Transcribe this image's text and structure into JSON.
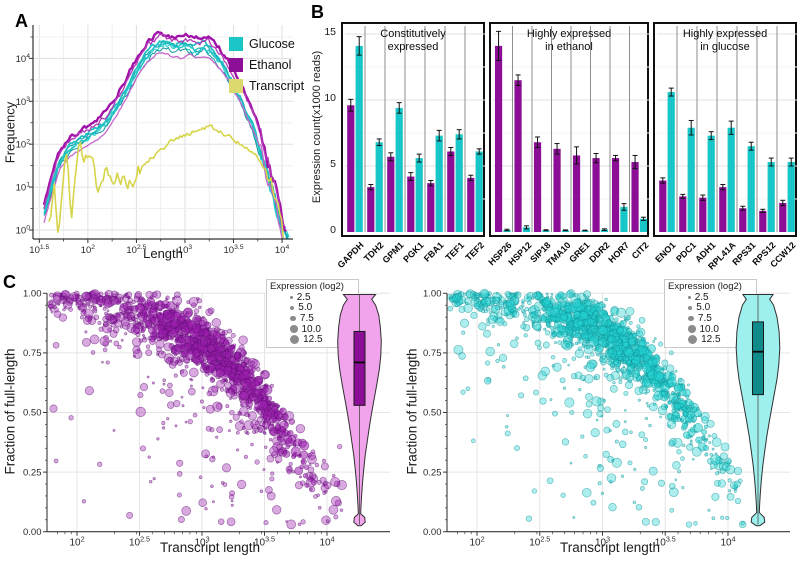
{
  "panels": {
    "a": {
      "label": "A",
      "xlabel": "Length",
      "ylabel": "Frequency",
      "legend": [
        {
          "label": "Glucose",
          "color": "#1cc5c8"
        },
        {
          "label": "Ethanol",
          "color": "#8e0f97"
        },
        {
          "label": "Transcript",
          "color": "#dcda6e"
        }
      ]
    },
    "b": {
      "label": "B",
      "ylabel": "Expression count(x1000 reads)"
    },
    "c": {
      "label": "C",
      "xlabel": "Transcript length",
      "ylabel": "Fraction of full-length",
      "legend_title": "Expression (log2)",
      "legend_sizes": [
        "2.5",
        "5.0",
        "7.5",
        "10.0",
        "12.5"
      ]
    }
  },
  "chart_data": [
    {
      "id": "A",
      "type": "line",
      "title": "Read length distributions",
      "xlabel": "Length",
      "ylabel": "Frequency",
      "xscale": "log",
      "yscale": "log",
      "xlim_log": [
        1.5,
        4
      ],
      "ylim_log": [
        0,
        4
      ],
      "x_tick_exponents": [
        "1.5",
        "2",
        "2.5",
        "3",
        "3.5",
        "4"
      ],
      "y_tick_exponents": [
        "0",
        "1",
        "2",
        "3",
        "4"
      ],
      "legend_position": "top-right",
      "grid": true,
      "series": [
        {
          "name": "Glucose",
          "anchors": [
            [
              1.55,
              0.5
            ],
            [
              1.7,
              1.6
            ],
            [
              1.8,
              1.95
            ],
            [
              1.9,
              2.1
            ],
            [
              2.0,
              2.25
            ],
            [
              2.1,
              2.4
            ],
            [
              2.2,
              2.6
            ],
            [
              2.3,
              2.95
            ],
            [
              2.4,
              3.3
            ],
            [
              2.5,
              3.75
            ],
            [
              2.6,
              4.1
            ],
            [
              2.7,
              4.35
            ],
            [
              2.8,
              4.42
            ],
            [
              2.9,
              4.3
            ],
            [
              3.0,
              4.38
            ],
            [
              3.1,
              4.25
            ],
            [
              3.2,
              4.35
            ],
            [
              3.3,
              4.15
            ],
            [
              3.4,
              3.85
            ],
            [
              3.5,
              3.4
            ],
            [
              3.6,
              2.95
            ],
            [
              3.7,
              2.45
            ],
            [
              3.8,
              1.7
            ],
            [
              3.9,
              0.9
            ],
            [
              4.0,
              0.2
            ],
            [
              4.08,
              -0.3
            ]
          ],
          "lines": [
            {
              "offset": 0,
              "width": 1.7,
              "amp": 0.05,
              "seed": 3,
              "color": "#1fbfc3"
            },
            {
              "offset": -0.05,
              "width": 1.2,
              "amp": 0.05,
              "seed": 4,
              "color": "#18aeb4"
            },
            {
              "offset": -0.1,
              "width": 1.1,
              "amp": 0.06,
              "seed": 5,
              "color": "#2bd1d1"
            },
            {
              "offset": -0.16,
              "width": 1.0,
              "amp": 0.05,
              "seed": 6,
              "color": "#0f97a0"
            },
            {
              "offset": -0.08,
              "width": 1.4,
              "amp": 0.04,
              "seed": 7,
              "color": "#25c3c6"
            }
          ]
        },
        {
          "name": "Ethanol",
          "anchors": [
            [
              1.55,
              0.6
            ],
            [
              1.7,
              1.8
            ],
            [
              1.8,
              2.1
            ],
            [
              1.9,
              2.25
            ],
            [
              2.0,
              2.4
            ],
            [
              2.1,
              2.55
            ],
            [
              2.2,
              2.75
            ],
            [
              2.3,
              3.1
            ],
            [
              2.4,
              3.5
            ],
            [
              2.5,
              3.95
            ],
            [
              2.6,
              4.3
            ],
            [
              2.7,
              4.52
            ],
            [
              2.75,
              4.56
            ],
            [
              2.85,
              4.48
            ],
            [
              2.95,
              4.42
            ],
            [
              3.05,
              4.5
            ],
            [
              3.15,
              4.42
            ],
            [
              3.25,
              4.45
            ],
            [
              3.35,
              4.2
            ],
            [
              3.45,
              3.9
            ],
            [
              3.55,
              3.5
            ],
            [
              3.65,
              3.0
            ],
            [
              3.75,
              2.5
            ],
            [
              3.85,
              1.7
            ],
            [
              3.95,
              0.8
            ],
            [
              4.05,
              -0.2
            ]
          ],
          "lines": [
            {
              "offset": 0.04,
              "width": 2.4,
              "amp": 0.05,
              "seed": 8,
              "color": "#a112a8"
            },
            {
              "offset": -0.06,
              "width": 1.3,
              "amp": 0.06,
              "seed": 9,
              "color": "#b23ab8"
            },
            {
              "offset": -0.42,
              "width": 1.3,
              "amp": 0.02,
              "seed": 10,
              "color": "#c667cb"
            }
          ]
        },
        {
          "name": "Transcript",
          "anchors": [
            [
              1.6,
              0.3
            ],
            [
              1.65,
              1.0
            ],
            [
              1.7,
              0.0
            ],
            [
              1.78,
              1.9
            ],
            [
              1.83,
              0.2
            ],
            [
              1.9,
              1.8
            ],
            [
              1.98,
              1.6
            ],
            [
              2.05,
              1.9
            ],
            [
              2.1,
              1.1
            ],
            [
              2.18,
              1.5
            ],
            [
              2.25,
              1.2
            ],
            [
              2.35,
              1.35
            ],
            [
              2.45,
              1.15
            ],
            [
              2.55,
              1.5
            ],
            [
              2.65,
              1.7
            ],
            [
              2.75,
              1.9
            ],
            [
              2.85,
              2.05
            ],
            [
              2.95,
              2.15
            ],
            [
              3.05,
              2.25
            ],
            [
              3.15,
              2.35
            ],
            [
              3.25,
              2.4
            ],
            [
              3.35,
              2.3
            ],
            [
              3.45,
              2.2
            ],
            [
              3.55,
              2.05
            ],
            [
              3.65,
              1.9
            ],
            [
              3.75,
              1.7
            ],
            [
              3.82,
              1.45
            ],
            [
              3.88,
              1.15
            ],
            [
              3.93,
              0.8
            ],
            [
              3.98,
              0.3
            ],
            [
              4.02,
              -0.2
            ]
          ],
          "lines": [
            {
              "offset": 0,
              "width": 1.6,
              "amp": 0.05,
              "seed": 12,
              "color": "#d6d449"
            }
          ]
        }
      ]
    },
    {
      "id": "B",
      "type": "bar",
      "ylabel": "Expression count(x1000 reads)",
      "ylim": [
        0,
        15.6
      ],
      "y_ticks": [
        0,
        5,
        10,
        15
      ],
      "series_colors": {
        "ethanol": "#8c0d96",
        "glucose": "#17c6c9"
      },
      "groups": [
        {
          "title": [
            "Constitutively",
            "expressed"
          ],
          "genes": [
            "GAPDH",
            "TDH2",
            "GPM1",
            "PGK1",
            "FBA1",
            "TEF1",
            "TEF2"
          ],
          "ethanol": [
            9.6,
            3.4,
            5.7,
            4.2,
            3.7,
            6.1,
            4.1
          ],
          "ethanol_err": [
            0.45,
            0.2,
            0.3,
            0.3,
            0.2,
            0.3,
            0.2
          ],
          "glucose": [
            14.1,
            6.8,
            9.4,
            5.6,
            7.3,
            7.4,
            6.1
          ],
          "glucose_err": [
            0.7,
            0.25,
            0.4,
            0.3,
            0.4,
            0.35,
            0.2
          ]
        },
        {
          "title": [
            "Highly expressed",
            "in ethanol"
          ],
          "genes": [
            "HSP26",
            "HSP12",
            "SIP18",
            "TMA10",
            "GRE1",
            "DDR2",
            "HOR7",
            "CIT2"
          ],
          "ethanol": [
            14.1,
            11.5,
            6.8,
            6.3,
            5.8,
            5.6,
            5.6,
            5.3
          ],
          "ethanol_err": [
            1.1,
            0.4,
            0.4,
            0.4,
            0.65,
            0.35,
            0.2,
            0.5
          ],
          "glucose": [
            0.15,
            0.35,
            0.12,
            0.12,
            0.1,
            0.18,
            1.9,
            1.0
          ],
          "glucose_err": [
            0.06,
            0.12,
            0.05,
            0.04,
            0.04,
            0.06,
            0.25,
            0.12
          ]
        },
        {
          "title": [
            "Highly expressed",
            "in glucose"
          ],
          "genes": [
            "ENO1",
            "PDC1",
            "ADH1",
            "RPL41A",
            "RPS31",
            "RPS12",
            "CCW12"
          ],
          "ethanol": [
            3.9,
            2.7,
            2.6,
            3.4,
            1.8,
            1.6,
            2.2
          ],
          "ethanol_err": [
            0.2,
            0.15,
            0.2,
            0.2,
            0.15,
            0.12,
            0.2
          ],
          "glucose": [
            10.6,
            7.9,
            7.3,
            7.9,
            6.5,
            5.3,
            5.3
          ],
          "glucose_err": [
            0.3,
            0.55,
            0.3,
            0.5,
            0.3,
            0.3,
            0.3
          ]
        }
      ]
    },
    {
      "id": "C_left",
      "type": "scatter",
      "condition": "Ethanol",
      "xlabel": "Transcript length",
      "ylabel": "Fraction of full-length",
      "xscale": "log",
      "xlim_log": [
        1.75,
        4.15
      ],
      "ylim": [
        0,
        1
      ],
      "x_tick_exponents": [
        "2",
        "2.5",
        "3",
        "3.5",
        "4"
      ],
      "y_ticks": [
        "0.00",
        "0.25",
        "0.50",
        "0.75",
        "1.00"
      ],
      "legend": {
        "title": "Expression (log2)",
        "sizes": [
          2.5,
          5.0,
          7.5,
          10.0,
          12.5
        ]
      },
      "n_points": 1400,
      "seed": 42,
      "trend": [
        [
          1.78,
          0.99
        ],
        [
          2.2,
          0.955
        ],
        [
          2.6,
          0.9
        ],
        [
          3.0,
          0.8
        ],
        [
          3.3,
          0.67
        ],
        [
          3.6,
          0.47
        ],
        [
          3.85,
          0.27
        ],
        [
          4.12,
          0.11
        ]
      ],
      "x_center": 3.05,
      "x_sd": 0.42,
      "x_range": [
        1.78,
        4.12
      ],
      "noise_sd": 0.055,
      "outlier_frac": 0.13,
      "point_fill": "#9c1fae",
      "point_stroke": "#5e0d72",
      "violin": {
        "fill": "#f1a4ec",
        "stroke": "#303030",
        "profile": [
          [
            0.995,
            0.62
          ],
          [
            0.975,
            0.47
          ],
          [
            0.95,
            0.62
          ],
          [
            0.91,
            0.74
          ],
          [
            0.86,
            0.8
          ],
          [
            0.8,
            0.84
          ],
          [
            0.74,
            0.82
          ],
          [
            0.68,
            0.76
          ],
          [
            0.62,
            0.67
          ],
          [
            0.56,
            0.57
          ],
          [
            0.5,
            0.47
          ],
          [
            0.44,
            0.38
          ],
          [
            0.38,
            0.3
          ],
          [
            0.32,
            0.22
          ],
          [
            0.26,
            0.16
          ],
          [
            0.2,
            0.11
          ],
          [
            0.15,
            0.08
          ],
          [
            0.1,
            0.055
          ],
          [
            0.075,
            0.045
          ],
          [
            0.06,
            0.2
          ],
          [
            0.04,
            0.22
          ],
          [
            0.025,
            0.06
          ]
        ],
        "box": {
          "q1": 0.53,
          "median": 0.71,
          "q3": 0.84,
          "whisker_low": 0.03,
          "whisker_high": 0.995,
          "fill": "#8c0d96"
        }
      }
    },
    {
      "id": "C_right",
      "type": "scatter",
      "condition": "Glucose",
      "xlabel": "Transcript length",
      "ylabel": "Fraction of full-length",
      "xscale": "log",
      "xlim_log": [
        1.75,
        4.15
      ],
      "ylim": [
        0,
        1
      ],
      "x_tick_exponents": [
        "2",
        "2.5",
        "3",
        "3.5",
        "4"
      ],
      "y_ticks": [
        "0.00",
        "0.25",
        "0.50",
        "0.75",
        "1.00"
      ],
      "legend": {
        "title": "Expression (log2)",
        "sizes": [
          2.5,
          5.0,
          7.5,
          10.0,
          12.5
        ]
      },
      "n_points": 1400,
      "seed": 77,
      "trend": [
        [
          1.78,
          0.995
        ],
        [
          2.2,
          0.97
        ],
        [
          2.6,
          0.925
        ],
        [
          3.0,
          0.845
        ],
        [
          3.3,
          0.74
        ],
        [
          3.6,
          0.55
        ],
        [
          3.85,
          0.35
        ],
        [
          4.12,
          0.17
        ]
      ],
      "x_center": 3.08,
      "x_sd": 0.42,
      "x_range": [
        1.78,
        4.12
      ],
      "noise_sd": 0.055,
      "outlier_frac": 0.13,
      "point_fill": "#25d2d2",
      "point_stroke": "#0e8f93",
      "violin": {
        "fill": "#9ef0ee",
        "stroke": "#303030",
        "profile": [
          [
            0.995,
            0.58
          ],
          [
            0.975,
            0.45
          ],
          [
            0.95,
            0.6
          ],
          [
            0.9,
            0.73
          ],
          [
            0.84,
            0.81
          ],
          [
            0.77,
            0.84
          ],
          [
            0.7,
            0.8
          ],
          [
            0.64,
            0.73
          ],
          [
            0.58,
            0.63
          ],
          [
            0.52,
            0.53
          ],
          [
            0.46,
            0.43
          ],
          [
            0.4,
            0.34
          ],
          [
            0.34,
            0.26
          ],
          [
            0.28,
            0.19
          ],
          [
            0.22,
            0.13
          ],
          [
            0.16,
            0.09
          ],
          [
            0.11,
            0.06
          ],
          [
            0.08,
            0.05
          ],
          [
            0.06,
            0.24
          ],
          [
            0.04,
            0.26
          ],
          [
            0.025,
            0.07
          ]
        ],
        "box": {
          "q1": 0.575,
          "median": 0.755,
          "q3": 0.88,
          "whisker_low": 0.03,
          "whisker_high": 0.995,
          "fill": "#0f8b8b"
        }
      }
    }
  ]
}
